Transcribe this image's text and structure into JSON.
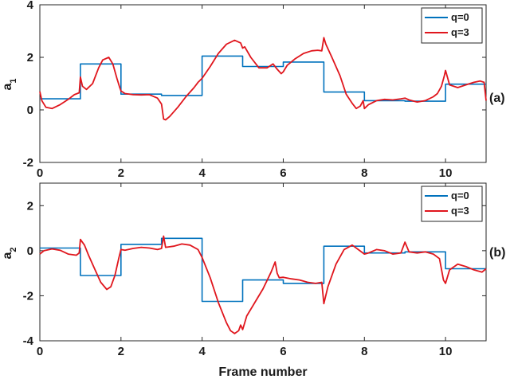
{
  "chart_data": [
    {
      "type": "line",
      "panel_tag": "(a)",
      "ylabel": "a",
      "ylabel_sub": "1",
      "xlabel": "",
      "xlim": [
        0,
        11
      ],
      "ylim": [
        -2,
        4
      ],
      "xticks": [
        0,
        2,
        4,
        6,
        8,
        10
      ],
      "xtick_labels": [
        "0",
        "2",
        "4",
        "6",
        "8",
        "10"
      ],
      "yticks": [
        -2,
        0,
        2,
        4
      ],
      "ytick_labels": [
        "-2",
        "0",
        "2",
        "4"
      ],
      "legend_position": "top-right",
      "series": [
        {
          "name": "q=0",
          "color": "#0072BD",
          "style": "step",
          "x": [
            0,
            1,
            1,
            2,
            2,
            3,
            3,
            4,
            4,
            5,
            5,
            6,
            6,
            7,
            7,
            8,
            8,
            9,
            9,
            10,
            10,
            11
          ],
          "y": [
            0.42,
            0.42,
            1.75,
            1.75,
            0.6,
            0.6,
            0.55,
            0.55,
            2.05,
            2.05,
            1.65,
            1.65,
            1.82,
            1.82,
            0.68,
            0.68,
            0.35,
            0.35,
            0.33,
            0.33,
            0.98,
            0.98
          ]
        },
        {
          "name": "q=3",
          "color": "#E0161D",
          "style": "line",
          "x": [
            0,
            0.05,
            0.15,
            0.3,
            0.5,
            0.7,
            0.85,
            0.97,
            1.0,
            1.05,
            1.15,
            1.3,
            1.45,
            1.55,
            1.7,
            1.8,
            1.9,
            1.97,
            2.0,
            2.1,
            2.3,
            2.5,
            2.7,
            2.9,
            3.0,
            3.05,
            3.1,
            3.2,
            3.4,
            3.6,
            3.8,
            3.9,
            4.0,
            4.2,
            4.4,
            4.6,
            4.8,
            4.95,
            5.0,
            5.05,
            5.2,
            5.4,
            5.6,
            5.75,
            5.85,
            5.95,
            6.0,
            6.1,
            6.3,
            6.5,
            6.7,
            6.85,
            6.95,
            7.0,
            7.05,
            7.2,
            7.4,
            7.55,
            7.7,
            7.8,
            7.9,
            7.97,
            8.0,
            8.1,
            8.3,
            8.5,
            8.7,
            8.9,
            9.0,
            9.1,
            9.3,
            9.5,
            9.7,
            9.8,
            9.9,
            9.97,
            10.0,
            10.1,
            10.3,
            10.5,
            10.7,
            10.85,
            10.95,
            11.0
          ],
          "y": [
            0.7,
            0.35,
            0.1,
            0.05,
            0.2,
            0.4,
            0.58,
            0.65,
            1.25,
            0.9,
            0.78,
            1.0,
            1.6,
            1.9,
            2.0,
            1.75,
            1.2,
            0.85,
            0.72,
            0.62,
            0.58,
            0.57,
            0.58,
            0.45,
            0.22,
            -0.35,
            -0.38,
            -0.25,
            0.1,
            0.5,
            0.85,
            1.05,
            1.2,
            1.65,
            2.15,
            2.5,
            2.65,
            2.55,
            2.35,
            2.4,
            2.0,
            1.6,
            1.6,
            1.75,
            1.55,
            1.38,
            1.45,
            1.7,
            1.95,
            2.15,
            2.25,
            2.27,
            2.25,
            2.75,
            2.5,
            2.0,
            1.3,
            0.6,
            0.25,
            0.05,
            0.15,
            0.35,
            0.05,
            0.2,
            0.35,
            0.4,
            0.38,
            0.42,
            0.45,
            0.38,
            0.3,
            0.35,
            0.5,
            0.62,
            0.9,
            1.3,
            1.5,
            0.95,
            0.85,
            0.95,
            1.05,
            1.1,
            1.05,
            0.35
          ]
        }
      ]
    },
    {
      "type": "line",
      "panel_tag": "(b)",
      "ylabel": "a",
      "ylabel_sub": "2",
      "xlabel": "Frame number",
      "xlim": [
        0,
        11
      ],
      "ylim": [
        -4,
        3
      ],
      "xticks": [
        0,
        2,
        4,
        6,
        8,
        10
      ],
      "xtick_labels": [
        "0",
        "2",
        "4",
        "6",
        "8",
        "10"
      ],
      "yticks": [
        -4,
        -2,
        0,
        2
      ],
      "ytick_labels": [
        "-4",
        "-2",
        "0",
        "2"
      ],
      "legend_position": "top-right",
      "series": [
        {
          "name": "q=0",
          "color": "#0072BD",
          "style": "step",
          "x": [
            0,
            1,
            1,
            2,
            2,
            3,
            3,
            4,
            4,
            5,
            5,
            6,
            6,
            7,
            7,
            8,
            8,
            9,
            9,
            10,
            10,
            11
          ],
          "y": [
            0.12,
            0.12,
            -1.1,
            -1.1,
            0.28,
            0.28,
            0.55,
            0.55,
            -2.25,
            -2.25,
            -1.3,
            -1.3,
            -1.45,
            -1.45,
            0.2,
            0.2,
            -0.1,
            -0.1,
            -0.05,
            -0.05,
            -0.8,
            -0.8
          ]
        },
        {
          "name": "q=3",
          "color": "#E0161D",
          "style": "line",
          "x": [
            0,
            0.1,
            0.3,
            0.5,
            0.7,
            0.9,
            0.97,
            1.0,
            1.1,
            1.2,
            1.35,
            1.5,
            1.65,
            1.75,
            1.85,
            1.95,
            2.0,
            2.1,
            2.3,
            2.5,
            2.7,
            2.9,
            3.0,
            3.05,
            3.1,
            3.3,
            3.5,
            3.7,
            3.9,
            4.0,
            4.2,
            4.4,
            4.6,
            4.7,
            4.8,
            4.9,
            4.95,
            5.0,
            5.05,
            5.1,
            5.3,
            5.5,
            5.7,
            5.8,
            5.85,
            5.9,
            6.0,
            6.2,
            6.4,
            6.6,
            6.8,
            6.95,
            7.0,
            7.1,
            7.3,
            7.5,
            7.7,
            7.85,
            8.0,
            8.1,
            8.3,
            8.5,
            8.7,
            8.9,
            9.0,
            9.1,
            9.3,
            9.5,
            9.7,
            9.85,
            9.95,
            10.0,
            10.1,
            10.3,
            10.5,
            10.7,
            10.9,
            11.0
          ],
          "y": [
            -0.15,
            0.0,
            0.08,
            0.02,
            -0.15,
            -0.2,
            -0.1,
            0.5,
            0.25,
            -0.2,
            -0.8,
            -1.4,
            -1.72,
            -1.6,
            -1.1,
            -0.3,
            0.05,
            0.02,
            0.1,
            0.15,
            0.12,
            0.05,
            0.1,
            0.65,
            0.15,
            0.2,
            0.3,
            0.25,
            0.05,
            -0.3,
            -1.2,
            -2.3,
            -3.2,
            -3.55,
            -3.68,
            -3.55,
            -3.3,
            -3.5,
            -3.2,
            -2.9,
            -2.3,
            -1.7,
            -0.95,
            -0.5,
            -1.0,
            -1.2,
            -1.18,
            -1.25,
            -1.3,
            -1.4,
            -1.45,
            -1.4,
            -2.35,
            -1.6,
            -0.6,
            0.05,
            0.25,
            0.05,
            -0.15,
            -0.1,
            0.05,
            0.0,
            -0.15,
            -0.1,
            0.38,
            -0.05,
            -0.1,
            -0.05,
            -0.15,
            -0.35,
            -1.3,
            -1.45,
            -0.85,
            -0.6,
            -0.7,
            -0.85,
            -0.95,
            -0.8
          ]
        }
      ]
    }
  ]
}
